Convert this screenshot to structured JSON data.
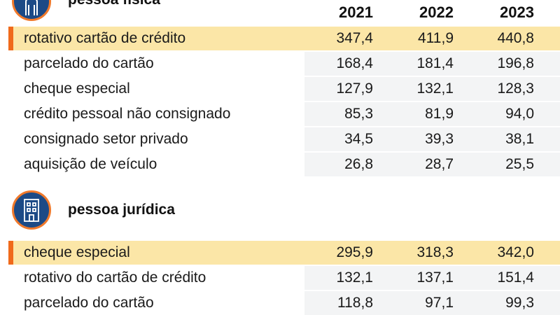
{
  "chart_data": {
    "type": "table",
    "columns": [
      "2021",
      "2022",
      "2023"
    ],
    "colors": {
      "highlight_row": "#fbe6a7",
      "accent": "#f06a1b",
      "icon_fill": "#1c4a86",
      "icon_ring": "#f0792b"
    },
    "sections": [
      {
        "label": "pessoa física",
        "icon": "person-icon",
        "rows": [
          {
            "label": "rotativo cartão de crédito",
            "values": [
              "347,4",
              "411,9",
              "440,8"
            ],
            "highlight": true
          },
          {
            "label": "parcelado do cartão",
            "values": [
              "168,4",
              "181,4",
              "196,8"
            ],
            "highlight": false
          },
          {
            "label": "cheque especial",
            "values": [
              "127,9",
              "132,1",
              "128,3"
            ],
            "highlight": false
          },
          {
            "label": "crédito pessoal não consignado",
            "values": [
              "85,3",
              "81,9",
              "94,0"
            ],
            "highlight": false
          },
          {
            "label": "consignado setor privado",
            "values": [
              "34,5",
              "39,3",
              "38,1"
            ],
            "highlight": false
          },
          {
            "label": "aquisição de veículo",
            "values": [
              "26,8",
              "28,7",
              "25,5"
            ],
            "highlight": false
          }
        ]
      },
      {
        "label": "pessoa jurídica",
        "icon": "building-icon",
        "rows": [
          {
            "label": "cheque especial",
            "values": [
              "295,9",
              "318,3",
              "342,0"
            ],
            "highlight": true
          },
          {
            "label": "rotativo do cartão de crédito",
            "values": [
              "132,1",
              "137,1",
              "151,4"
            ],
            "highlight": false
          },
          {
            "label": "parcelado do cartão",
            "values": [
              "118,8",
              "97,1",
              "99,3"
            ],
            "highlight": false
          }
        ]
      }
    ]
  }
}
